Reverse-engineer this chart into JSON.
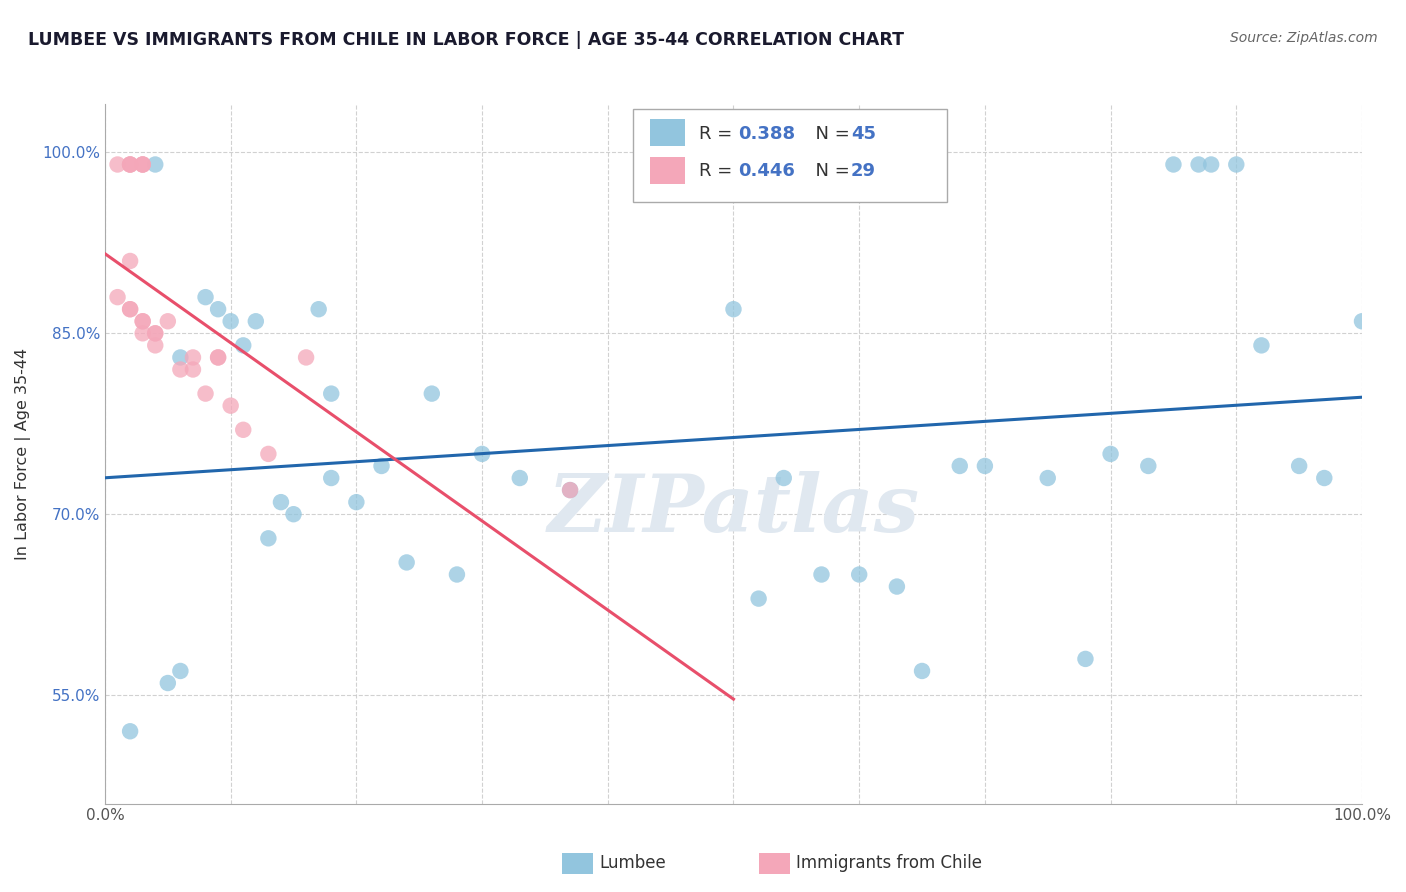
{
  "title": "LUMBEE VS IMMIGRANTS FROM CHILE IN LABOR FORCE | AGE 35-44 CORRELATION CHART",
  "source": "Source: ZipAtlas.com",
  "ylabel": "In Labor Force | Age 35-44",
  "watermark": "ZIPatlas",
  "blue_legend_r": "0.388",
  "blue_legend_n": "45",
  "pink_legend_r": "0.446",
  "pink_legend_n": "29",
  "xlim": [
    0.0,
    1.0
  ],
  "ylim": [
    0.46,
    1.04
  ],
  "xtick_labels": [
    "0.0%",
    "",
    "",
    "",
    "",
    "",
    "",
    "",
    "",
    "",
    "100.0%"
  ],
  "xtick_vals": [
    0.0,
    0.1,
    0.2,
    0.3,
    0.4,
    0.5,
    0.6,
    0.7,
    0.8,
    0.9,
    1.0
  ],
  "ytick_labels": [
    "55.0%",
    "70.0%",
    "85.0%",
    "100.0%"
  ],
  "ytick_vals": [
    0.55,
    0.7,
    0.85,
    1.0
  ],
  "blue_color": "#92c5de",
  "pink_color": "#f4a7b9",
  "blue_line_color": "#2166ac",
  "pink_line_color": "#e84f6b",
  "blue_x": [
    0.02,
    0.04,
    0.05,
    0.06,
    0.06,
    0.08,
    0.09,
    0.1,
    0.11,
    0.12,
    0.13,
    0.14,
    0.15,
    0.17,
    0.18,
    0.18,
    0.2,
    0.22,
    0.24,
    0.26,
    0.28,
    0.3,
    0.33,
    0.37,
    0.5,
    0.52,
    0.54,
    0.57,
    0.6,
    0.63,
    0.65,
    0.68,
    0.7,
    0.75,
    0.78,
    0.8,
    0.83,
    0.85,
    0.87,
    0.88,
    0.9,
    0.92,
    0.95,
    0.97,
    1.0
  ],
  "blue_y": [
    0.52,
    0.99,
    0.56,
    0.57,
    0.83,
    0.88,
    0.87,
    0.86,
    0.84,
    0.86,
    0.68,
    0.71,
    0.7,
    0.87,
    0.73,
    0.8,
    0.71,
    0.74,
    0.66,
    0.8,
    0.65,
    0.75,
    0.73,
    0.72,
    0.87,
    0.63,
    0.73,
    0.65,
    0.65,
    0.64,
    0.57,
    0.74,
    0.74,
    0.73,
    0.58,
    0.75,
    0.74,
    0.99,
    0.99,
    0.99,
    0.99,
    0.84,
    0.74,
    0.73,
    0.86
  ],
  "pink_x": [
    0.01,
    0.01,
    0.02,
    0.02,
    0.02,
    0.02,
    0.02,
    0.02,
    0.03,
    0.03,
    0.03,
    0.03,
    0.03,
    0.03,
    0.04,
    0.04,
    0.04,
    0.05,
    0.06,
    0.07,
    0.07,
    0.08,
    0.09,
    0.09,
    0.1,
    0.11,
    0.13,
    0.16,
    0.37
  ],
  "pink_y": [
    0.88,
    0.99,
    0.87,
    0.87,
    0.99,
    0.99,
    0.99,
    0.91,
    0.86,
    0.85,
    0.86,
    0.99,
    0.99,
    0.99,
    0.85,
    0.85,
    0.84,
    0.86,
    0.82,
    0.82,
    0.83,
    0.8,
    0.83,
    0.83,
    0.79,
    0.77,
    0.75,
    0.83,
    0.72
  ],
  "legend_box_blue": "#92c5de",
  "legend_box_pink": "#f4a7b9"
}
